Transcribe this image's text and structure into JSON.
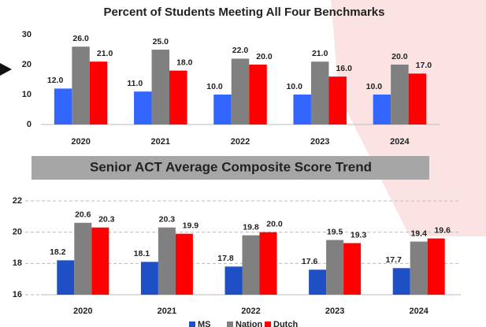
{
  "charts": [
    {
      "chart_data": {
        "type": "bar",
        "title": "Percent of Students Meeting All Four Benchmarks",
        "categories": [
          "2020",
          "2021",
          "2022",
          "2023",
          "2024"
        ],
        "series": [
          {
            "color": "#3366ff",
            "values": [
              12,
              11,
              10,
              10,
              10
            ],
            "value_labels": [
              "12.0",
              "11.0",
              "10.0",
              "10.0",
              "10.0"
            ]
          },
          {
            "color": "#808080",
            "values": [
              26,
              25,
              22,
              21,
              20
            ],
            "value_labels": [
              "26.0",
              "25.0",
              "22.0",
              "21.0",
              "20.0"
            ]
          },
          {
            "color": "#ff0000",
            "values": [
              21,
              18,
              20,
              16,
              17
            ],
            "value_labels": [
              "21.0",
              "18.0",
              "20.0",
              "16.0",
              "17.0"
            ]
          }
        ],
        "ylim": [
          0,
          30
        ],
        "yticks": [
          0,
          10,
          20,
          30
        ],
        "grid": false
      }
    },
    {
      "chart_data": {
        "type": "bar",
        "title": "Senior ACT Average Composite Score Trend",
        "categories": [
          "2020",
          "2021",
          "2022",
          "2023",
          "2024"
        ],
        "series": [
          {
            "name": "MS",
            "color": "#1f4fc4",
            "values": [
              18.2,
              18.1,
              17.8,
              17.6,
              17.7
            ]
          },
          {
            "name": "Nation",
            "color": "#808080",
            "values": [
              20.6,
              20.3,
              19.8,
              19.5,
              19.4
            ]
          },
          {
            "name": "Dutch",
            "color": "#ff0000",
            "values": [
              20.3,
              19.9,
              20,
              19.3,
              19.6
            ],
            "value_labels": [
              "20.3",
              "19.9",
              "20.0",
              "19.3",
              "19.6"
            ]
          }
        ],
        "ylim": [
          16,
          22
        ],
        "yticks": [
          16,
          18,
          20,
          22
        ],
        "grid": true
      }
    }
  ]
}
